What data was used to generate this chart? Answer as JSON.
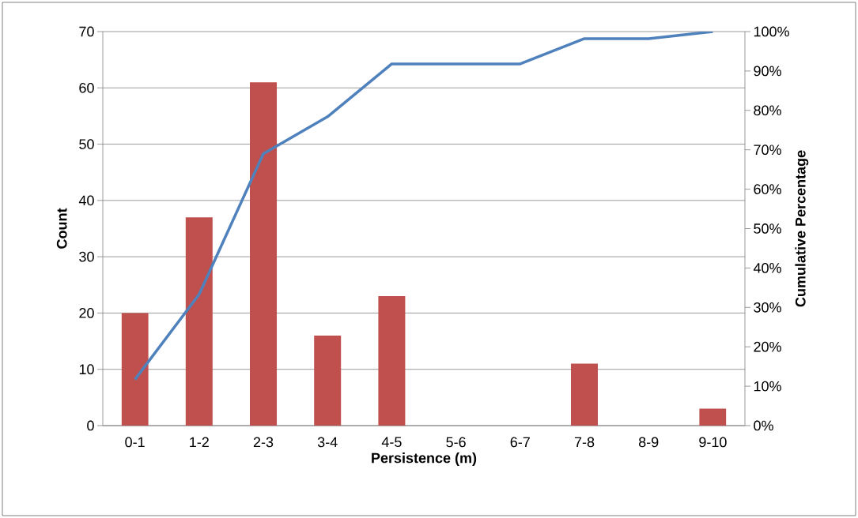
{
  "chart_data": {
    "type": "bar",
    "xlabel": "Persistence (m)",
    "ylabel": "Count",
    "y2label": "Cumulative Percentage",
    "categories": [
      "0-1",
      "1-2",
      "2-3",
      "3-4",
      "4-5",
      "5-6",
      "6-7",
      "7-8",
      "8-9",
      "9-10"
    ],
    "series": [
      {
        "color": "#c0504d",
        "values": [
          20,
          37,
          61,
          16,
          23,
          0,
          0,
          11,
          0,
          3
        ]
      },
      {
        "type": "line",
        "axis": "y2",
        "color": "#4f81bd",
        "values": [
          11.7,
          33.3,
          69.0,
          78.4,
          91.8,
          91.8,
          91.8,
          98.2,
          98.2,
          100
        ]
      }
    ],
    "ylim": [
      0,
      70
    ],
    "yticks": [
      0,
      10,
      20,
      30,
      40,
      50,
      60,
      70
    ],
    "y2lim": [
      0,
      100
    ],
    "y2ticks": [
      {
        "value": 0,
        "label": "0%"
      },
      {
        "value": 10,
        "label": "10%"
      },
      {
        "value": 20,
        "label": "20%"
      },
      {
        "value": 30,
        "label": "30%"
      },
      {
        "value": 40,
        "label": "40%"
      },
      {
        "value": 50,
        "label": "50%"
      },
      {
        "value": 60,
        "label": "60%"
      },
      {
        "value": 70,
        "label": "70%"
      },
      {
        "value": 80,
        "label": "80%"
      },
      {
        "value": 90,
        "label": "90%"
      },
      {
        "value": 100,
        "label": "100%"
      }
    ],
    "grid": "y"
  }
}
